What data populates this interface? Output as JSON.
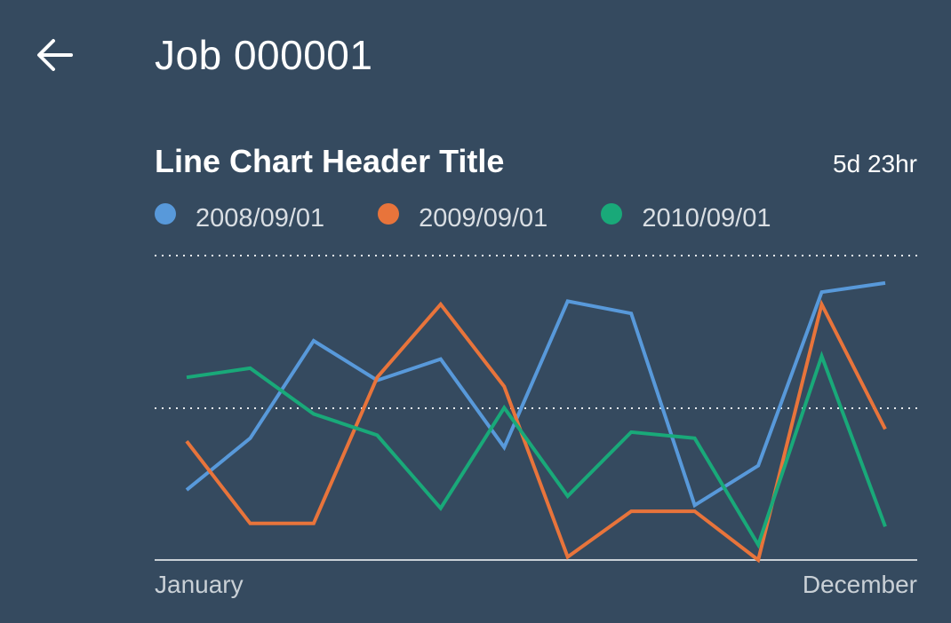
{
  "header": {
    "title": "Job 000001",
    "back_icon": "arrow-left-icon"
  },
  "chart_card": {
    "title": "Line Chart Header Title",
    "meta": "5d 23hr"
  },
  "colors": {
    "background": "#354a5f",
    "series_blue": "#5899da",
    "series_orange": "#e8743b",
    "series_green": "#19a979",
    "gridline": "#e6e9ec",
    "baseline": "#c9d0d6"
  },
  "chart_data": {
    "type": "line",
    "title": "Line Chart Header Title",
    "xlabel": "",
    "ylabel": "",
    "x_tick_labels": [
      "January",
      "December"
    ],
    "categories": [
      "1",
      "2",
      "3",
      "4",
      "5",
      "6",
      "7",
      "8",
      "9",
      "10",
      "11",
      "12"
    ],
    "ylim": [
      0,
      100
    ],
    "grid": "horizontal dotted at 50 and 100",
    "legend_position": "top-left",
    "series": [
      {
        "name": "2008/09/01",
        "color": "#5899da",
        "values": [
          23,
          40,
          72,
          59,
          66,
          37,
          85,
          81,
          18,
          31,
          88,
          91
        ]
      },
      {
        "name": "2009/09/01",
        "color": "#e8743b",
        "values": [
          39,
          12,
          12,
          60,
          84,
          57,
          1,
          16,
          16,
          0,
          84,
          43
        ]
      },
      {
        "name": "2010/09/01",
        "color": "#19a979",
        "values": [
          60,
          63,
          48,
          41,
          17,
          50,
          21,
          42,
          40,
          5,
          67,
          11
        ]
      }
    ]
  }
}
